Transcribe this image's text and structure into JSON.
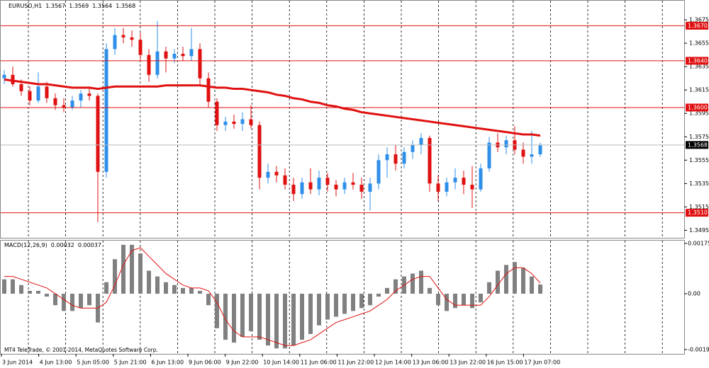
{
  "chart_data": {
    "type": "candlestick",
    "title": "EURUSD,H1",
    "last_bar": [
      1.3567,
      1.3569,
      1.3564,
      1.3568
    ],
    "bull_color": "#2f8fe8",
    "bear_color": "#e01010",
    "ma_color": "#e01010",
    "level_color": "#e01010",
    "ylim": [
      1.3488,
      1.3692
    ],
    "yticks": [
      1.3675,
      1.3655,
      1.3635,
      1.3615,
      1.3595,
      1.3575,
      1.3555,
      1.3535,
      1.3515,
      1.3495
    ],
    "levels": [
      {
        "value": 1.367,
        "label": "1.3670"
      },
      {
        "value": 1.364,
        "label": "1.3640"
      },
      {
        "value": 1.36,
        "label": "1.3600"
      },
      {
        "value": 1.351,
        "label": "1.3510"
      }
    ],
    "current_price": 1.3568,
    "x_labels": [
      "3 Jun 2014",
      "4 Jun 13:00",
      "5 Jun 05:00",
      "5 Jun 21:00",
      "6 Jun 13:00",
      "9 Jun 06:00",
      "9 Jun 22:00",
      "10 Jun 14:00",
      "11 Jun 06:00",
      "11 Jun 22:00",
      "12 Jun 14:00",
      "13 Jun 06:00",
      "13 Jun 22:00",
      "16 Jun 15:00",
      "17 Jun 07:00"
    ],
    "ohlc": [
      [
        1.3625,
        1.3632,
        1.362,
        1.3628
      ],
      [
        1.3628,
        1.3635,
        1.3618,
        1.362
      ],
      [
        1.362,
        1.3624,
        1.361,
        1.3614
      ],
      [
        1.3614,
        1.3618,
        1.3602,
        1.3606
      ],
      [
        1.3606,
        1.363,
        1.3604,
        1.3618
      ],
      [
        1.3618,
        1.3622,
        1.3604,
        1.3608
      ],
      [
        1.3608,
        1.3612,
        1.3598,
        1.3602
      ],
      [
        1.3602,
        1.3608,
        1.3596,
        1.36
      ],
      [
        1.36,
        1.361,
        1.3598,
        1.3606
      ],
      [
        1.3606,
        1.3615,
        1.36,
        1.3612
      ],
      [
        1.3612,
        1.3618,
        1.3606,
        1.361
      ],
      [
        1.361,
        1.3612,
        1.3502,
        1.3545
      ],
      [
        1.3545,
        1.3655,
        1.354,
        1.365
      ],
      [
        1.365,
        1.3668,
        1.3645,
        1.3662
      ],
      [
        1.3662,
        1.3668,
        1.3655,
        1.366
      ],
      [
        1.366,
        1.3666,
        1.3652,
        1.3658
      ],
      [
        1.3658,
        1.3664,
        1.364,
        1.3645
      ],
      [
        1.3645,
        1.365,
        1.3622,
        1.3628
      ],
      [
        1.3628,
        1.3674,
        1.3625,
        1.3648
      ],
      [
        1.3648,
        1.3652,
        1.363,
        1.3642
      ],
      [
        1.3642,
        1.365,
        1.3638,
        1.3646
      ],
      [
        1.3646,
        1.3652,
        1.364,
        1.3644
      ],
      [
        1.3644,
        1.3668,
        1.364,
        1.365
      ],
      [
        1.365,
        1.3655,
        1.362,
        1.3625
      ],
      [
        1.3625,
        1.363,
        1.36,
        1.3605
      ],
      [
        1.3605,
        1.3608,
        1.358,
        1.3585
      ],
      [
        1.3585,
        1.3592,
        1.358,
        1.3588
      ],
      [
        1.3588,
        1.3594,
        1.3582,
        1.3586
      ],
      [
        1.3586,
        1.3596,
        1.358,
        1.359
      ],
      [
        1.359,
        1.3602,
        1.3582,
        1.3585
      ],
      [
        1.3585,
        1.3588,
        1.353,
        1.354
      ],
      [
        1.354,
        1.3552,
        1.3535,
        1.3545
      ],
      [
        1.3545,
        1.355,
        1.3536,
        1.3542
      ],
      [
        1.3542,
        1.3548,
        1.353,
        1.3534
      ],
      [
        1.3534,
        1.354,
        1.352,
        1.3526
      ],
      [
        1.3526,
        1.354,
        1.3522,
        1.3536
      ],
      [
        1.3536,
        1.3548,
        1.3526,
        1.353
      ],
      [
        1.353,
        1.3546,
        1.3525,
        1.354
      ],
      [
        1.354,
        1.3544,
        1.3528,
        1.3534
      ],
      [
        1.3534,
        1.3538,
        1.3524,
        1.353
      ],
      [
        1.353,
        1.354,
        1.3526,
        1.3536
      ],
      [
        1.3536,
        1.3544,
        1.353,
        1.3534
      ],
      [
        1.3534,
        1.354,
        1.3522,
        1.3528
      ],
      [
        1.3528,
        1.354,
        1.3512,
        1.3535
      ],
      [
        1.3535,
        1.356,
        1.353,
        1.3555
      ],
      [
        1.3555,
        1.3566,
        1.354,
        1.356
      ],
      [
        1.356,
        1.3568,
        1.3546,
        1.3552
      ],
      [
        1.3552,
        1.3566,
        1.3548,
        1.3562
      ],
      [
        1.3562,
        1.3572,
        1.3556,
        1.3568
      ],
      [
        1.3568,
        1.3578,
        1.356,
        1.3574
      ],
      [
        1.3574,
        1.3576,
        1.3528,
        1.3535
      ],
      [
        1.3535,
        1.3542,
        1.352,
        1.3528
      ],
      [
        1.3528,
        1.354,
        1.3524,
        1.3536
      ],
      [
        1.3536,
        1.3548,
        1.353,
        1.354
      ],
      [
        1.354,
        1.3546,
        1.3526,
        1.3534
      ],
      [
        1.3534,
        1.355,
        1.3514,
        1.353
      ],
      [
        1.353,
        1.3552,
        1.3528,
        1.3548
      ],
      [
        1.3548,
        1.3575,
        1.3545,
        1.357
      ],
      [
        1.357,
        1.3578,
        1.3562,
        1.3566
      ],
      [
        1.3566,
        1.3576,
        1.356,
        1.3572
      ],
      [
        1.3572,
        1.3584,
        1.356,
        1.3564
      ],
      [
        1.3564,
        1.357,
        1.3552,
        1.3558
      ],
      [
        1.3558,
        1.358,
        1.3552,
        1.356
      ],
      [
        1.356,
        1.357,
        1.3558,
        1.3568
      ]
    ],
    "ma_values": [
      1.3624,
      1.3623,
      1.3622,
      1.3621,
      1.362,
      1.362,
      1.3619,
      1.3618,
      1.3617,
      1.3617,
      1.3617,
      1.3616,
      1.3617,
      1.3618,
      1.3618,
      1.3618,
      1.3618,
      1.3618,
      1.3618,
      1.3619,
      1.3619,
      1.3619,
      1.3619,
      1.3619,
      1.3618,
      1.3617,
      1.3617,
      1.3616,
      1.3616,
      1.3615,
      1.3614,
      1.3613,
      1.3611,
      1.361,
      1.3608,
      1.3607,
      1.3605,
      1.3604,
      1.3602,
      1.3601,
      1.3599,
      1.3598,
      1.3596,
      1.3595,
      1.3594,
      1.3593,
      1.3592,
      1.3591,
      1.359,
      1.3589,
      1.3588,
      1.3587,
      1.3586,
      1.3585,
      1.3584,
      1.3583,
      1.3582,
      1.3581,
      1.358,
      1.3579,
      1.3578,
      1.3577,
      1.3577,
      1.3576
    ],
    "macd": {
      "title": "MACD(12,26,9)",
      "printed_values": [
        0.00032,
        0.00037
      ],
      "histogram_color": "#808080",
      "signal_color": "#e01010",
      "ylim": [
        -0.00209,
        0.00187
      ],
      "yticks": [
        0.00175,
        {
          "value": 0,
          "label": "0.00"
        },
        -0.00194
      ],
      "histogram": [
        0.0005,
        0.0005,
        0.0003,
        0.0001,
        0.0001,
        -0.0001,
        -0.0004,
        -0.0006,
        -0.0006,
        -0.0005,
        -0.0004,
        -0.001,
        0.0004,
        0.0012,
        0.0017,
        0.0017,
        0.0014,
        0.0008,
        0.0006,
        0.0004,
        0.0003,
        0.0002,
        0.0002,
        0.0001,
        -0.0004,
        -0.0012,
        -0.0016,
        -0.0017,
        -0.0015,
        -0.0013,
        -0.0016,
        -0.0018,
        -0.0019,
        -0.0019,
        -0.0018,
        -0.0016,
        -0.0014,
        -0.0011,
        -0.0009,
        -0.0008,
        -0.0007,
        -0.0006,
        -0.0005,
        -0.0004,
        -0.0001,
        0.0002,
        0.0005,
        0.0006,
        0.0007,
        0.0008,
        0.0002,
        -0.0004,
        -0.0006,
        -0.0005,
        -0.0004,
        -0.0005,
        -0.0003,
        0.0004,
        0.0008,
        0.001,
        0.0011,
        0.0009,
        0.0006,
        0.00032
      ],
      "signal": [
        0.0006,
        0.0006,
        0.0005,
        0.0004,
        0.0003,
        0.0002,
        0,
        -0.0002,
        -0.0004,
        -0.0005,
        -0.0005,
        -0.0005,
        -0.0003,
        0.0003,
        0.001,
        0.0015,
        0.0016,
        0.0013,
        0.001,
        0.0007,
        0.0005,
        0.0003,
        0.0002,
        0.0002,
        0.0001,
        -0.0003,
        -0.0009,
        -0.0013,
        -0.0015,
        -0.0015,
        -0.0015,
        -0.0016,
        -0.0017,
        -0.0018,
        -0.0018,
        -0.0017,
        -0.0016,
        -0.0014,
        -0.0012,
        -0.001,
        -0.0009,
        -0.0008,
        -0.0007,
        -0.0006,
        -0.0004,
        -0.0002,
        0.0001,
        0.0003,
        0.0005,
        0.0006,
        0.0006,
        0.0002,
        -0.0002,
        -0.0004,
        -0.0004,
        -0.0004,
        -0.0004,
        -0.0001,
        0.0003,
        0.0007,
        0.0009,
        0.0009,
        0.0007,
        0.00037
      ]
    },
    "footer": "MT4 TeleTrade, © 2001-2014, MetaQuotes Software Corp."
  }
}
